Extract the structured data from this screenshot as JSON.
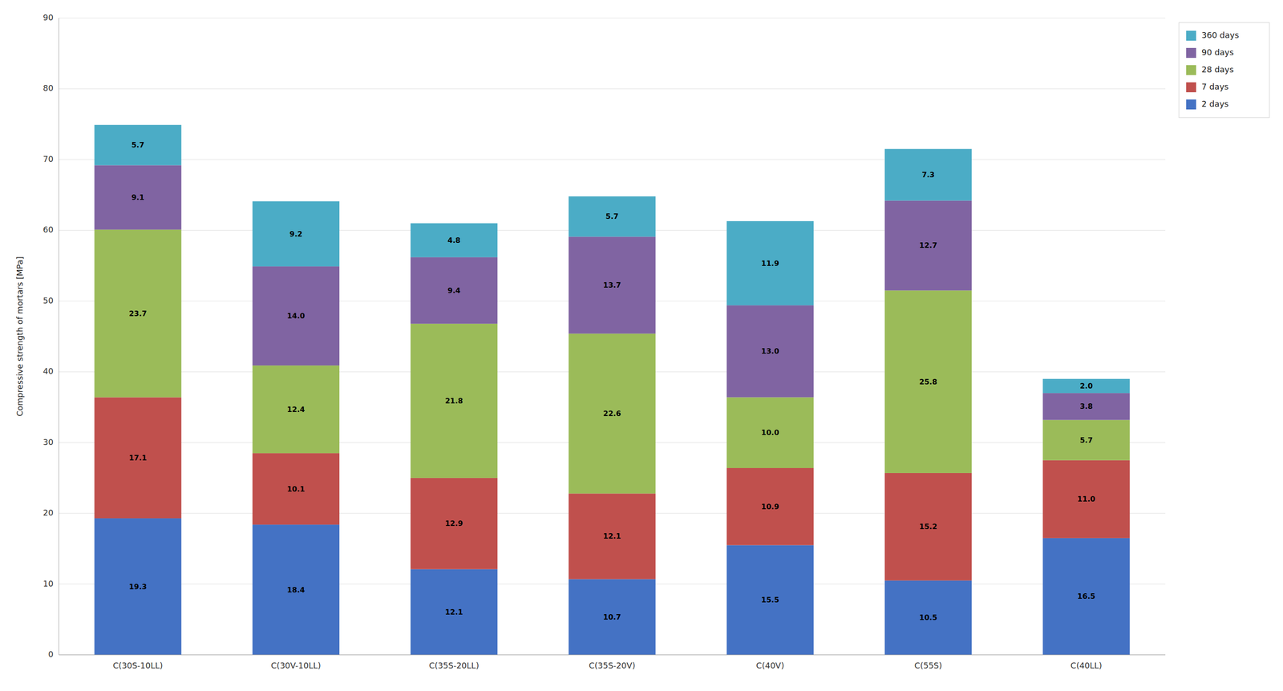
{
  "chart_data": {
    "type": "bar",
    "stacked": true,
    "data_labels": true,
    "grid": true,
    "legend": "upper right",
    "ylabel": "Compressive strength of mortars [MPa]",
    "categories": [
      "C(30S-10LL)",
      "C(30V-10LL)",
      "C(35S-20LL)",
      "C(35S-20V)",
      "C(40V)",
      "C(55S)",
      "C(40LL)"
    ],
    "ylim": [
      0,
      90
    ],
    "yticks": [
      0,
      10,
      20,
      30,
      40,
      50,
      60,
      70,
      80,
      90
    ],
    "series": [
      {
        "name": "2 days",
        "color": "#4472C4",
        "values": [
          19.3,
          18.4,
          12.1,
          10.7,
          15.5,
          10.5,
          16.5
        ],
        "value_labels": [
          "19.3",
          "18.4",
          "12.1",
          "10.7",
          "15.5",
          "10.5",
          "16.5"
        ]
      },
      {
        "name": "7 days",
        "color": "#C0504D",
        "values": [
          17.1,
          10.1,
          12.9,
          12.1,
          10.9,
          15.2,
          11.0
        ],
        "value_labels": [
          "17.1",
          "10.1",
          "12.9",
          "12.1",
          "10.9",
          "15.2",
          "11.0"
        ]
      },
      {
        "name": "28 days",
        "color": "#9BBB59",
        "values": [
          23.7,
          12.4,
          21.8,
          22.6,
          10.0,
          25.8,
          5.7
        ],
        "value_labels": [
          "23.7",
          "12.4",
          "21.8",
          "22.6",
          "10.0",
          "25.8",
          "5.7"
        ]
      },
      {
        "name": "90 days",
        "color": "#8064A2",
        "values": [
          9.1,
          14.0,
          9.4,
          13.7,
          13.0,
          12.7,
          3.8
        ],
        "value_labels": [
          "9.1",
          "14.0",
          "9.4",
          "13.7",
          "13.0",
          "12.7",
          "3.8"
        ]
      },
      {
        "name": "360 days",
        "color": "#4BACC6",
        "values": [
          5.7,
          9.2,
          4.8,
          5.7,
          11.9,
          7.3,
          2.0
        ],
        "value_labels": [
          "5.7",
          "9.2",
          "4.8",
          "5.7",
          "11.9",
          "7.3",
          "2.0"
        ]
      }
    ]
  }
}
